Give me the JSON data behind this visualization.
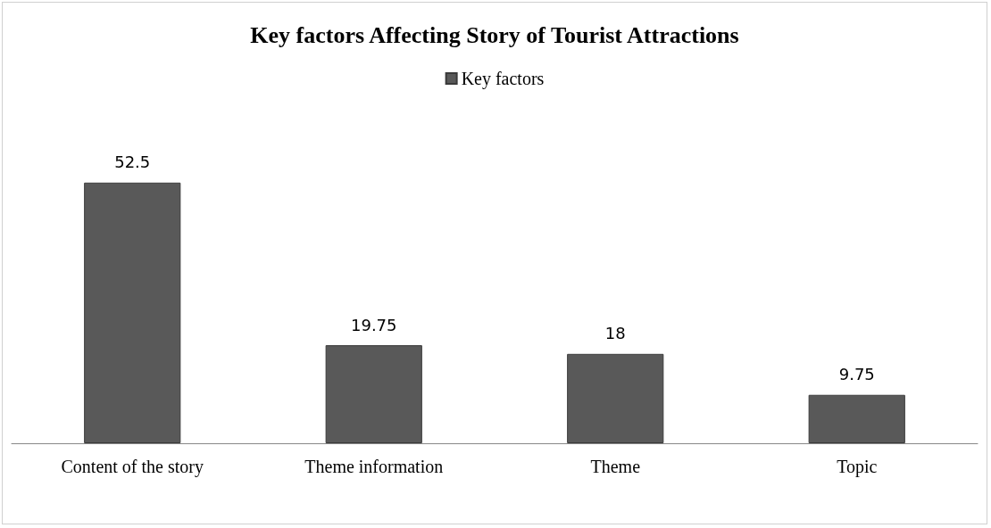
{
  "chart_data": {
    "type": "bar",
    "title": "Key factors Affecting Story of Tourist Attractions",
    "categories": [
      "Content of the story",
      "Theme information",
      "Theme",
      "Topic"
    ],
    "series": [
      {
        "name": "Key factors",
        "color": "#595959",
        "values": [
          52.5,
          19.75,
          18,
          9.75
        ]
      }
    ],
    "data_labels": true,
    "legend": "top"
  }
}
